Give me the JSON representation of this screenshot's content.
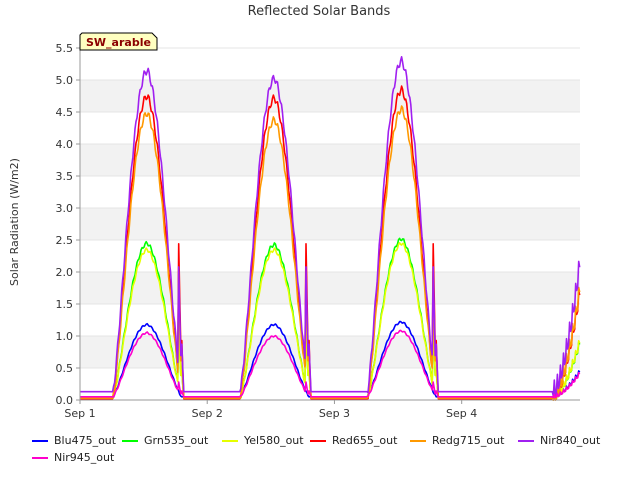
{
  "chart_data": {
    "type": "line",
    "title": "Reflected Solar Bands",
    "ylabel": "Solar Radiation (W/m2)",
    "xlabel": "",
    "badge": "SW_arable",
    "ylim": [
      0,
      5.5
    ],
    "xlim": [
      0,
      3.93
    ],
    "yticks": [
      "0.0",
      "0.5",
      "1.0",
      "1.5",
      "2.0",
      "2.5",
      "3.0",
      "3.5",
      "4.0",
      "4.5",
      "5.0",
      "5.5"
    ],
    "xticks": [
      {
        "label": "Sep 1",
        "value": 0
      },
      {
        "label": "Sep 2",
        "value": 1
      },
      {
        "label": "Sep 3",
        "value": 2
      },
      {
        "label": "Sep 4",
        "value": 3
      }
    ],
    "grid": "horizontal bands",
    "legend_position": "bottom",
    "series": [
      {
        "name": "Blu475_out",
        "color": "#0000ff",
        "night": 0.05,
        "peaks": [
          1.18,
          1.18,
          1.22
        ],
        "spike": 0.05,
        "end": 0.45
      },
      {
        "name": "Grn535_out",
        "color": "#00ff00",
        "night": 0.03,
        "peaks": [
          2.45,
          2.43,
          2.52
        ],
        "spike": 1.45,
        "end": 0.9
      },
      {
        "name": "Yel580_out",
        "color": "#e6ff00",
        "night": 0.03,
        "peaks": [
          2.35,
          2.35,
          2.45
        ],
        "spike": 1.45,
        "end": 0.92
      },
      {
        "name": "Red655_out",
        "color": "#ff0000",
        "night": 0.02,
        "peaks": [
          4.75,
          4.72,
          4.85
        ],
        "spike": 3.05,
        "end": 1.7
      },
      {
        "name": "Redg715_out",
        "color": "#ff9900",
        "night": 0.03,
        "peaks": [
          4.48,
          4.38,
          4.55
        ],
        "spike": 2.3,
        "end": 1.75
      },
      {
        "name": "Nir840_out",
        "color": "#a020f0",
        "night": 0.13,
        "peaks": [
          5.15,
          5.03,
          5.3
        ],
        "spike": 2.6,
        "end": 2.15
      },
      {
        "name": "Nir945_out",
        "color": "#ff00cc",
        "night": 0.05,
        "peaks": [
          1.05,
          1.0,
          1.08
        ],
        "spike": 0.35,
        "end": 0.42
      }
    ]
  }
}
